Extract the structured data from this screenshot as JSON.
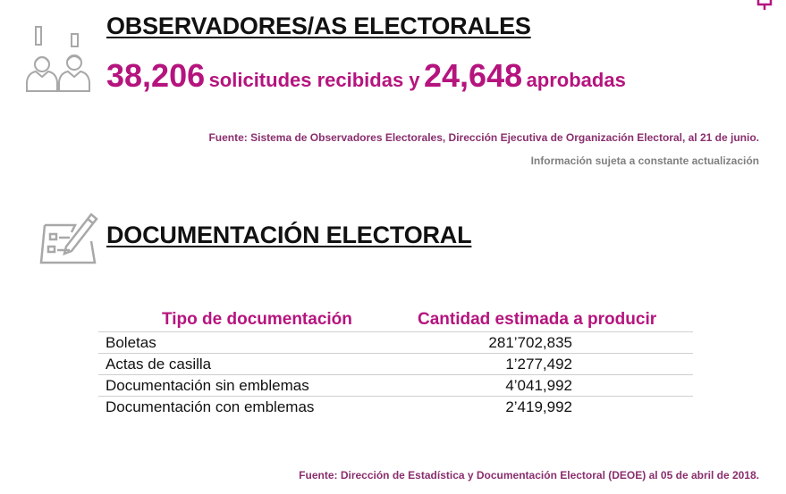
{
  "observadores": {
    "title": "OBSERVADORES/AS ELECTORALES",
    "solicitudes_count": "38,206",
    "solicitudes_text": "solicitudes recibidas y",
    "aprobadas_count": "24,648",
    "aprobadas_text": "aprobadas",
    "source": "Fuente: Sistema de Observadores Electorales, Dirección Ejecutiva de Organización Electoral, al 21 de junio.",
    "note": "Información sujeta a constante actualización",
    "icon": "two-observers-icon"
  },
  "documentacion": {
    "title": "DOCUMENTACIÓN ELECTORAL",
    "icon": "ballot-checklist-pencil-icon",
    "table": {
      "headers": [
        "Tipo de documentación",
        "Cantidad estimada a producir"
      ],
      "rows": [
        {
          "label": "Boletas",
          "value": "281’702,835"
        },
        {
          "label": "Actas de casilla",
          "value": "1’277,492"
        },
        {
          "label": "Documentación sin emblemas",
          "value": "4’041,992"
        },
        {
          "label": "Documentación con emblemas",
          "value": "2’419,992"
        }
      ]
    },
    "source": "Fuente: Dirección de Estadística y Documentación Electoral (DEOE) al 05 de abril de 2018."
  },
  "colors": {
    "accent": "#b5147e",
    "source": "#8a2f6e",
    "muted": "#808080",
    "icon": "#a8a8a8"
  },
  "corner_icon": "corner-marker-icon"
}
